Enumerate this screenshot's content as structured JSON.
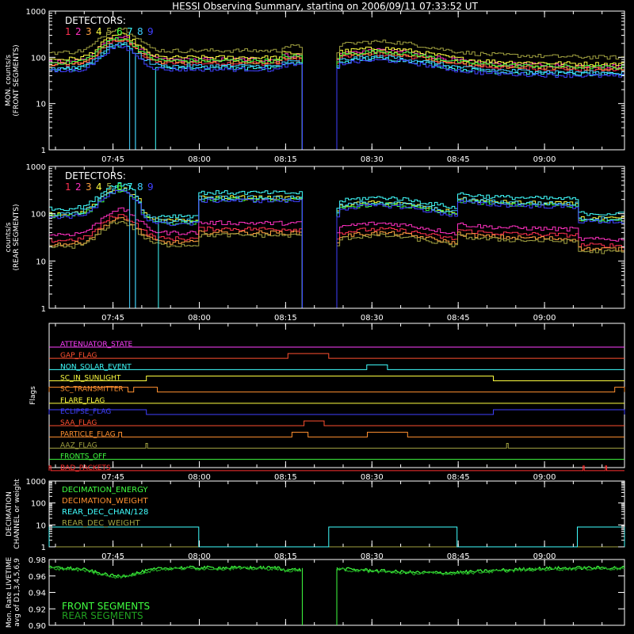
{
  "title": "HESSI Observing Summary, starting on 2006/09/11 07:33:52 UT",
  "colors": {
    "background": "#000000",
    "axis": "#ffffff",
    "det1": "#ff3050",
    "det2": "#ff30c0",
    "det3": "#ffa040",
    "det4": "#ffff40",
    "det5": "#a0a040",
    "det6": "#40ff40",
    "det7": "#40ffff",
    "det8": "#40d0ff",
    "det9": "#4040ff"
  },
  "time_axis": {
    "start_min": 0,
    "end_min": 100,
    "tick_labels": [
      "07:45",
      "08:00",
      "08:15",
      "08:30",
      "08:45",
      "09:00"
    ],
    "tick_minutes": [
      11.1,
      26.1,
      41.1,
      56.1,
      71.1,
      86.1
    ],
    "minor_step_min": 5
  },
  "chart_data": [
    {
      "type": "line",
      "id": "front",
      "ylabel": "MON. counts/s (FRONT SEGMENTS)",
      "ylabel_lines": [
        "MON. counts/s",
        "(FRONT SEGMENTS)"
      ],
      "ylog": true,
      "ylim": [
        1,
        1000
      ],
      "yticks": [
        "1",
        "10",
        "100",
        "1000"
      ],
      "legend_title": "DETECTORS:",
      "legend": [
        "1",
        "2",
        "3",
        "4",
        "5",
        "6",
        "7",
        "8",
        "9"
      ],
      "gap": [
        44,
        50
      ],
      "series": [
        {
          "name": "1",
          "color": "#ff3050",
          "base": 75
        },
        {
          "name": "2",
          "color": "#ff30c0",
          "base": 90
        },
        {
          "name": "3",
          "color": "#ffa040",
          "base": 80
        },
        {
          "name": "4",
          "color": "#ffff40",
          "base": 100
        },
        {
          "name": "5",
          "color": "#a0a040",
          "base": 140
        },
        {
          "name": "6",
          "color": "#40ff40",
          "base": 85
        },
        {
          "name": "7",
          "color": "#40ffff",
          "base": 60,
          "dropout": [
            [
              14.6,
              18.4
            ]
          ]
        },
        {
          "name": "8",
          "color": "#40d0ff",
          "base": 65,
          "dropout": [
            [
              14.0,
              14.8
            ]
          ]
        },
        {
          "name": "9",
          "color": "#4040ff",
          "base": 55
        }
      ]
    },
    {
      "type": "line",
      "id": "rear",
      "ylabel": "counts/s (REAR SEGMENTS)",
      "ylabel_lines": [
        "counts/s",
        "(REAR SEGMENTS)"
      ],
      "ylog": true,
      "ylim": [
        1,
        1000
      ],
      "yticks": [
        "1",
        "10",
        "100",
        "1000"
      ],
      "legend_title": "DETECTORS:",
      "legend": [
        "1",
        "2",
        "3",
        "4",
        "5",
        "6",
        "7",
        "8",
        "9"
      ],
      "gap": [
        44,
        50
      ],
      "series": [
        {
          "name": "1",
          "color": "#ff3050",
          "base": 30,
          "rise": false
        },
        {
          "name": "2",
          "color": "#ff30c0",
          "base": 40,
          "rise": false
        },
        {
          "name": "3",
          "color": "#ffa040",
          "base": 25,
          "rise": false
        },
        {
          "name": "4",
          "color": "#ffff40",
          "base": 110,
          "rise": true
        },
        {
          "name": "5",
          "color": "#a0a040",
          "base": 22,
          "rise": false
        },
        {
          "name": "6",
          "color": "#40ff40",
          "base": 100,
          "rise": true
        },
        {
          "name": "7",
          "color": "#40ffff",
          "base": 140,
          "rise": true,
          "dropout": [
            [
              14.8,
              18.6
            ]
          ]
        },
        {
          "name": "8",
          "color": "#40d0ff",
          "base": 110,
          "rise": true,
          "dropout": [
            [
              14.0,
              14.9
            ]
          ]
        },
        {
          "name": "9",
          "color": "#4040ff",
          "base": 95,
          "rise": true
        }
      ]
    }
  ],
  "flags_panel": {
    "ylabel": "Flags",
    "flags": [
      {
        "name": "ATTENUATOR_STATE",
        "color": "#ff40ff",
        "high": []
      },
      {
        "name": "GAP_FLAG",
        "color": "#ff5030",
        "high": [
          [
            41.5,
            48.6
          ]
        ]
      },
      {
        "name": "NON_SOLAR_EVENT",
        "color": "#40ffff",
        "high": [
          [
            55.2,
            58.8
          ]
        ]
      },
      {
        "name": "SC_IN_SUNLIGHT",
        "color": "#ffff40",
        "high": [
          [
            16.9,
            77.2
          ]
        ]
      },
      {
        "name": "SC_TRANSMITTER",
        "color": "#ff9030",
        "high": [
          [
            0,
            13.7
          ],
          [
            14.7,
            18.8
          ],
          [
            98.3,
            100
          ]
        ]
      },
      {
        "name": "FLARE_FLAG",
        "color": "#ffff40",
        "high": []
      },
      {
        "name": "ECLIPSE_FLAG",
        "color": "#4040ff",
        "high": [
          [
            0,
            16.9
          ],
          [
            77.2,
            100
          ]
        ]
      },
      {
        "name": "SAA_FLAG",
        "color": "#ff5030",
        "high": [
          [
            44.3,
            47.8
          ]
        ]
      },
      {
        "name": "PARTICLE_FLAG",
        "color": "#ff9030",
        "high": [
          [
            12.1,
            12.6
          ],
          [
            42.2,
            45.0
          ],
          [
            55.3,
            62.3
          ]
        ]
      },
      {
        "name": "AAZ_FLAG",
        "color": "#a0a040",
        "high": [
          [
            16.8,
            17.1
          ],
          [
            79.5,
            79.8
          ]
        ]
      },
      {
        "name": "FRONTS_OFF",
        "color": "#40ff40",
        "high": []
      },
      {
        "name": "BAD_PACKETS",
        "color": "#ff3030",
        "high": [
          [
            0,
            0.3
          ],
          [
            92.8,
            93.0
          ],
          [
            96.7,
            96.9
          ]
        ]
      }
    ]
  },
  "decimation_panel": {
    "ylabel_lines": [
      "DECIMATION",
      "CHANNEL or weight"
    ],
    "ylog": true,
    "ylim": [
      1,
      1000
    ],
    "yticks": [
      "1",
      "10",
      "100",
      "1000"
    ],
    "legend": [
      {
        "name": "DECIMATION_ENERGY",
        "color": "#40ff40"
      },
      {
        "name": "DECIMATION_WEIGHT",
        "color": "#ff9030"
      },
      {
        "name": "REAR_DEC_CHAN/128",
        "color": "#40ffff"
      },
      {
        "name": "REAR_DEC_WEIGHT",
        "color": "#a0a040"
      }
    ],
    "rear_dec_chan_high": [
      [
        0,
        26.0
      ],
      [
        48.6,
        70.9
      ],
      [
        91.8,
        100
      ]
    ],
    "rear_dec_chan_value": 8,
    "other_value": 1
  },
  "livetime_panel": {
    "ylabel_lines": [
      "Mon. Rate LIVETIME",
      "avg of D1,3,4,5,6,9"
    ],
    "ylim": [
      0.9,
      0.98
    ],
    "yticks": [
      "0.90",
      "0.92",
      "0.94",
      "0.96",
      "0.98"
    ],
    "gap": [
      44,
      50
    ],
    "legend": [
      {
        "name": "FRONT SEGMENTS",
        "color": "#40ff40"
      },
      {
        "name": "REAR SEGMENTS",
        "color": "#20a020"
      }
    ]
  }
}
